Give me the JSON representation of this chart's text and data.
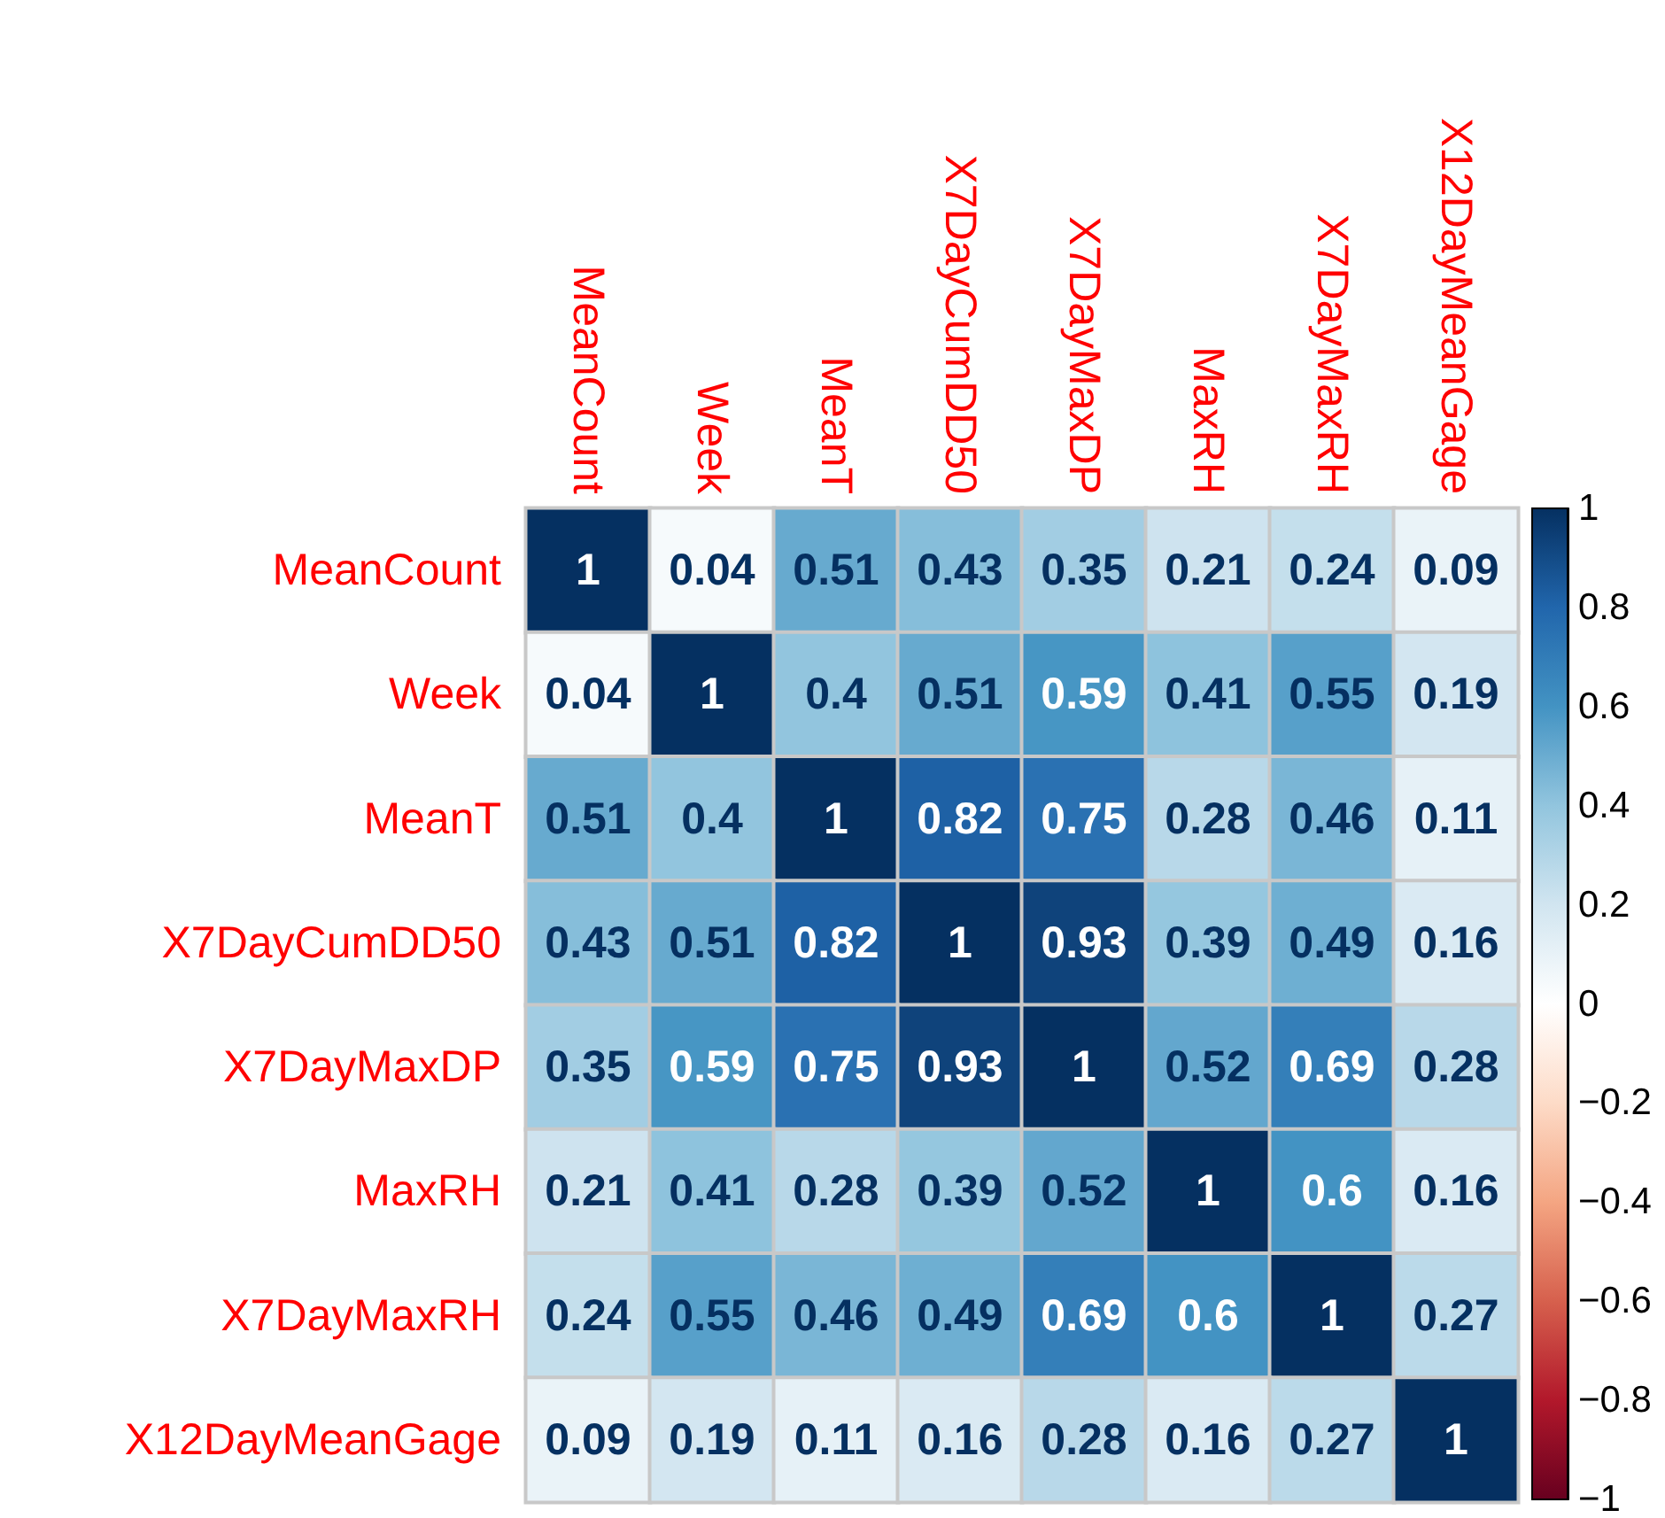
{
  "chart_data": {
    "type": "heatmap",
    "categories": [
      "MeanCount",
      "Week",
      "MeanT",
      "X7DayCumDD50",
      "X7DayMaxDP",
      "MaxRH",
      "X7DayMaxRH",
      "X12DayMeanGage"
    ],
    "y_categories": [
      "MeanCount",
      "Week",
      "MeanT",
      "X7DayCumDD50",
      "X7DayMaxDP",
      "MaxRH",
      "X7DayMaxRH",
      "X12DayMeanGage"
    ],
    "cells": [
      [
        1,
        0.04,
        0.51,
        0.43,
        0.35,
        0.21,
        0.24,
        0.09
      ],
      [
        0.04,
        1,
        0.4,
        0.51,
        0.59,
        0.41,
        0.55,
        0.19
      ],
      [
        0.51,
        0.4,
        1,
        0.82,
        0.75,
        0.28,
        0.46,
        0.11
      ],
      [
        0.43,
        0.51,
        0.82,
        1,
        0.93,
        0.39,
        0.49,
        0.16
      ],
      [
        0.35,
        0.59,
        0.75,
        0.93,
        1,
        0.52,
        0.69,
        0.28
      ],
      [
        0.21,
        0.41,
        0.28,
        0.39,
        0.52,
        1,
        0.6,
        0.16
      ],
      [
        0.24,
        0.55,
        0.46,
        0.49,
        0.69,
        0.6,
        1,
        0.27
      ],
      [
        0.09,
        0.19,
        0.11,
        0.16,
        0.28,
        0.16,
        0.27,
        1
      ]
    ],
    "data_labels": true,
    "clim": [
      -1,
      1
    ],
    "cticks": [
      {
        "value": -1,
        "label": "−1"
      },
      {
        "value": -0.8,
        "label": "−0.8"
      },
      {
        "value": -0.6,
        "label": "−0.6"
      },
      {
        "value": -0.4,
        "label": "−0.4"
      },
      {
        "value": -0.2,
        "label": "−0.2"
      },
      0,
      0.2,
      0.4,
      0.6,
      0.8,
      1
    ]
  }
}
